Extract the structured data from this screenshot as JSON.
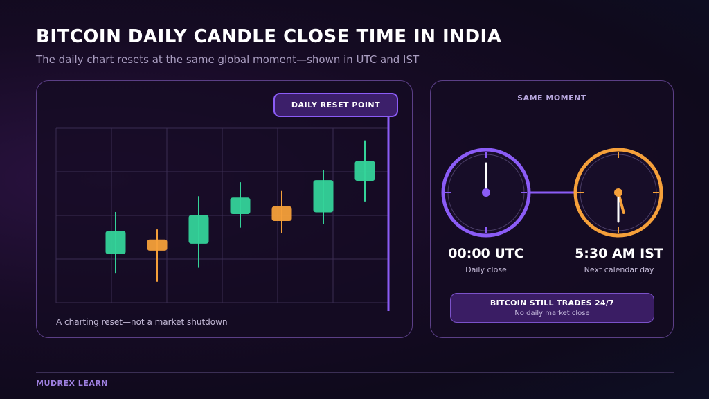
{
  "header": {
    "title": "BITCOIN DAILY CANDLE CLOSE TIME IN INDIA",
    "subtitle": "The daily chart resets at the same global moment—shown in UTC and IST"
  },
  "chart_panel": {
    "badge": "DAILY RESET POINT",
    "caption": "A charting reset—not a market shutdown"
  },
  "chart_data": {
    "type": "candlestick",
    "y_range": [
      0,
      100
    ],
    "candles": [
      {
        "open": 28,
        "close": 41,
        "high": 52,
        "low": 17,
        "color": "green"
      },
      {
        "open": 36,
        "close": 30,
        "high": 42,
        "low": 12,
        "color": "orange"
      },
      {
        "open": 34,
        "close": 50,
        "high": 61,
        "low": 20,
        "color": "green"
      },
      {
        "open": 51,
        "close": 60,
        "high": 69,
        "low": 43,
        "color": "green"
      },
      {
        "open": 55,
        "close": 47,
        "high": 64,
        "low": 40,
        "color": "orange"
      },
      {
        "open": 52,
        "close": 70,
        "high": 76,
        "low": 45,
        "color": "green"
      },
      {
        "open": 70,
        "close": 81,
        "high": 93,
        "low": 58,
        "color": "green"
      }
    ]
  },
  "clock_panel": {
    "heading": "SAME MOMENT",
    "clocks": [
      {
        "time": "00:00 UTC",
        "label": "Daily close",
        "hour": 0,
        "minute": 0,
        "color": "#8b5cf6"
      },
      {
        "time": "5:30 AM IST",
        "label": "Next calendar day",
        "hour": 5,
        "minute": 30,
        "color": "#f5a03a"
      }
    ],
    "note_title": "BITCOIN STILL TRADES 24/7",
    "note_sub": "No daily market close"
  },
  "footer": {
    "brand": "MUDREX LEARN"
  },
  "colors": {
    "green": "#34d399",
    "orange": "#f5a03a",
    "purple": "#8b5cf6"
  }
}
